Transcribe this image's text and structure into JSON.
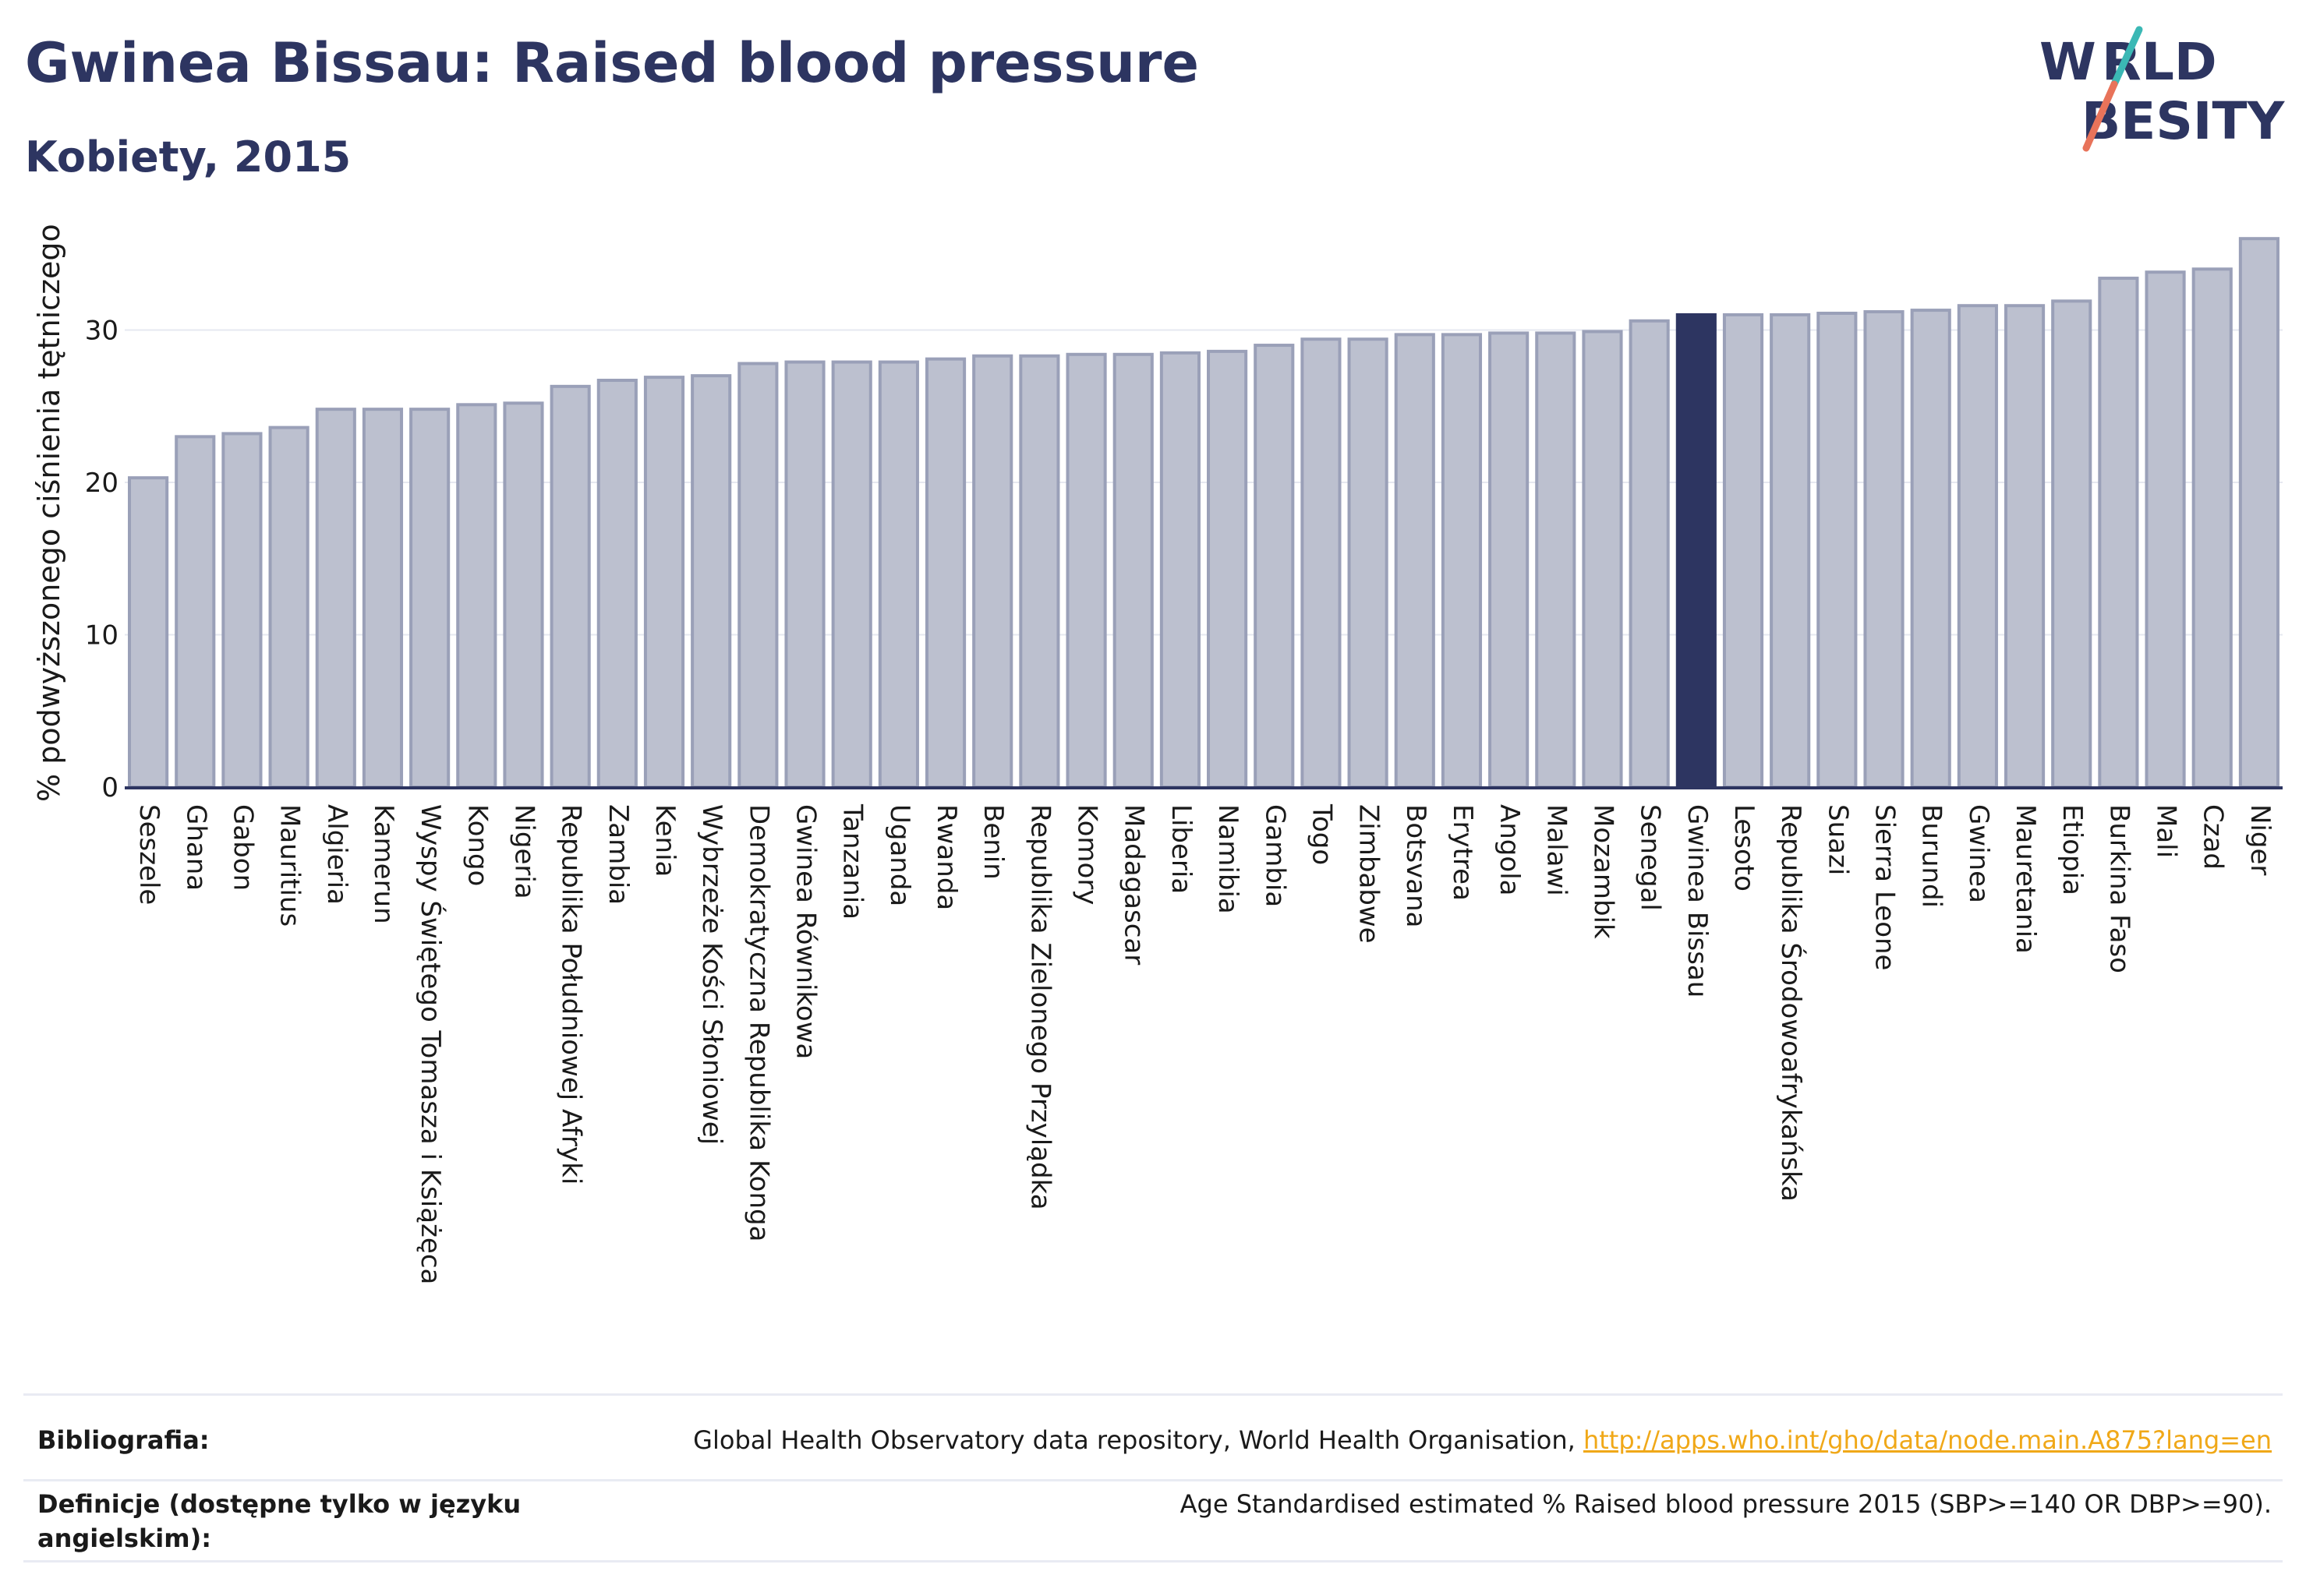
{
  "header": {
    "title": "Gwinea Bissau: Raised blood pressure",
    "subtitle": "Kobiety, 2015"
  },
  "logo": {
    "line1": "WORLD",
    "line2": "OBESITY",
    "colors": {
      "text": "#2d3561",
      "slash_teal": "#3bb8b5",
      "slash_red": "#e8735a"
    }
  },
  "colors": {
    "bar": "#bcc0cf",
    "bar_stroke": "#9aa0b8",
    "highlight": "#2d3561",
    "grid": "#e6e8f0",
    "axis": "#2d3561"
  },
  "chart_data": {
    "type": "bar",
    "title": "Gwinea Bissau: Raised blood pressure",
    "subtitle": "Kobiety, 2015",
    "xlabel": "",
    "ylabel": "% podwyższonego ciśnienia tętniczego",
    "ylim": [
      0,
      37
    ],
    "yticks": [
      0,
      10,
      20,
      30
    ],
    "grid": true,
    "highlight": "Gwinea Bissau",
    "categories": [
      "Seszele",
      "Ghana",
      "Gabon",
      "Mauritius",
      "Algieria",
      "Kamerun",
      "Wyspy Świętego Tomasza i Książęca",
      "Kongo",
      "Nigeria",
      "Republika Południowej Afryki",
      "Zambia",
      "Kenia",
      "Wybrzeże Kości Słoniowej",
      "Demokratyczna Republika Konga",
      "Gwinea Równikowa",
      "Tanzania",
      "Uganda",
      "Rwanda",
      "Benin",
      "Republika Zielonego Przylądka",
      "Komory",
      "Madagascar",
      "Liberia",
      "Namibia",
      "Gambia",
      "Togo",
      "Zimbabwe",
      "Botsvana",
      "Erytrea",
      "Angola",
      "Malawi",
      "Mozambik",
      "Senegal",
      "Gwinea Bissau",
      "Lesoto",
      "Republika Środowoafrykańska",
      "Suazi",
      "Sierra Leone",
      "Burundi",
      "Gwinea",
      "Mauretania",
      "Etiopia",
      "Burkina Faso",
      "Mali",
      "Czad",
      "Niger"
    ],
    "values": [
      20.3,
      23.0,
      23.2,
      23.6,
      24.8,
      24.8,
      24.8,
      25.1,
      25.2,
      26.3,
      26.7,
      26.9,
      27.0,
      27.8,
      27.9,
      27.9,
      27.9,
      28.1,
      28.3,
      28.3,
      28.4,
      28.4,
      28.5,
      28.6,
      29.0,
      29.4,
      29.4,
      29.7,
      29.7,
      29.8,
      29.8,
      29.9,
      30.6,
      31.0,
      31.0,
      31.0,
      31.1,
      31.2,
      31.3,
      31.6,
      31.6,
      31.9,
      33.4,
      33.8,
      34.0,
      36.0
    ]
  },
  "footer": {
    "bibliography_label": "Bibliografia:",
    "bibliography_text": "Global Health Observatory data repository, World Health Organisation, ",
    "bibliography_link": "http://apps.who.int/gho/data/node.main.A875?lang=en",
    "definitions_label_1": "Definicje (dostępne tylko w języku",
    "definitions_label_2": "angielskim):",
    "definitions_text": "Age Standardised estimated % Raised blood pressure 2015 (SBP>=140 OR DBP>=90)."
  }
}
